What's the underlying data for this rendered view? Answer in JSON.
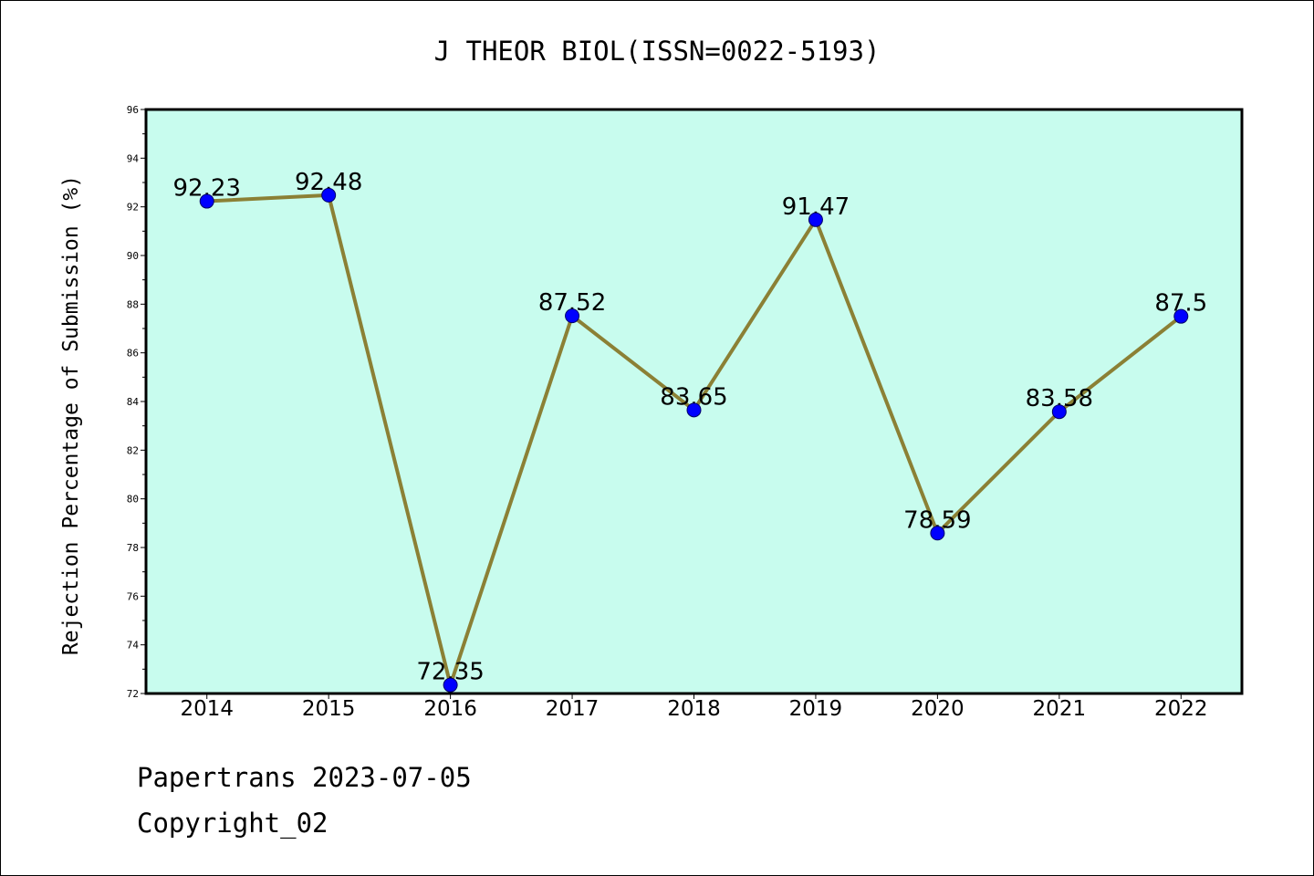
{
  "chart_data": {
    "type": "line",
    "title": "J THEOR BIOL(ISSN=0022-5193)",
    "xlabel": "",
    "ylabel": "Rejection Percentage of Submission (%)",
    "categories": [
      "2014",
      "2015",
      "2016",
      "2017",
      "2018",
      "2019",
      "2020",
      "2021",
      "2022"
    ],
    "series": [
      {
        "values": [
          92.23,
          92.48,
          72.35,
          87.52,
          83.65,
          91.47,
          78.59,
          83.58,
          87.5
        ],
        "labels": [
          "92.23",
          "92.48",
          "72.35",
          "87.52",
          "83.65",
          "91.47",
          "78.59",
          "83.58",
          "87.5"
        ]
      }
    ],
    "ylim": [
      72,
      96
    ],
    "yticks": [
      "72",
      "74",
      "76",
      "78",
      "80",
      "82",
      "84",
      "86",
      "88",
      "90",
      "92",
      "94",
      "96"
    ],
    "grid": false,
    "legend": "none",
    "colors": {
      "plot_background": "#c8fcee",
      "line": "#8b8035",
      "marker": "#0000ff",
      "axes": "#000000"
    }
  },
  "footer": {
    "line1": "Papertrans 2023-07-05",
    "line2": "Copyright_02"
  }
}
